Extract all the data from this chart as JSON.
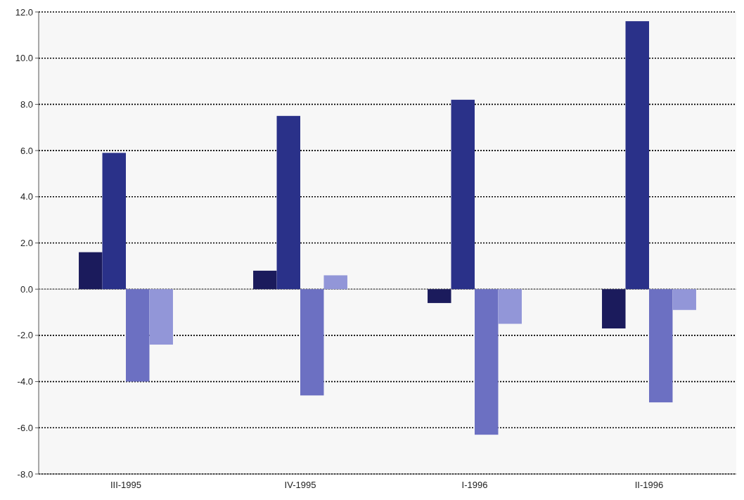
{
  "chart_data": {
    "type": "bar",
    "categories": [
      "III-1995",
      "IV-1995",
      "I-1996",
      "II-1996"
    ],
    "series": [
      {
        "color": "#1b1b5c",
        "values": [
          1.6,
          0.8,
          -0.6,
          -1.7
        ]
      },
      {
        "color": "#2a3189",
        "values": [
          5.9,
          7.5,
          8.2,
          11.6
        ]
      },
      {
        "color": "#6c70c2",
        "values": [
          -4.0,
          -4.6,
          -6.3,
          -4.9
        ]
      },
      {
        "color": "#9296d8",
        "values": [
          -2.4,
          0.6,
          -1.5,
          -0.9
        ]
      }
    ],
    "ylim": [
      -8,
      12
    ],
    "yticks": [
      {
        "value": -8,
        "label": "-8.0"
      },
      {
        "value": -6,
        "label": "-6.0"
      },
      {
        "value": -4,
        "label": "-4.0"
      },
      {
        "value": -2,
        "label": "-2.0"
      },
      {
        "value": 0,
        "label": "0.0"
      },
      {
        "value": 2,
        "label": "2.0"
      },
      {
        "value": 4,
        "label": "4.0"
      },
      {
        "value": 6,
        "label": "6.0"
      },
      {
        "value": 8,
        "label": "8.0"
      },
      {
        "value": 10,
        "label": "10.0"
      },
      {
        "value": 12,
        "label": "12.0"
      }
    ],
    "grid": "y"
  }
}
